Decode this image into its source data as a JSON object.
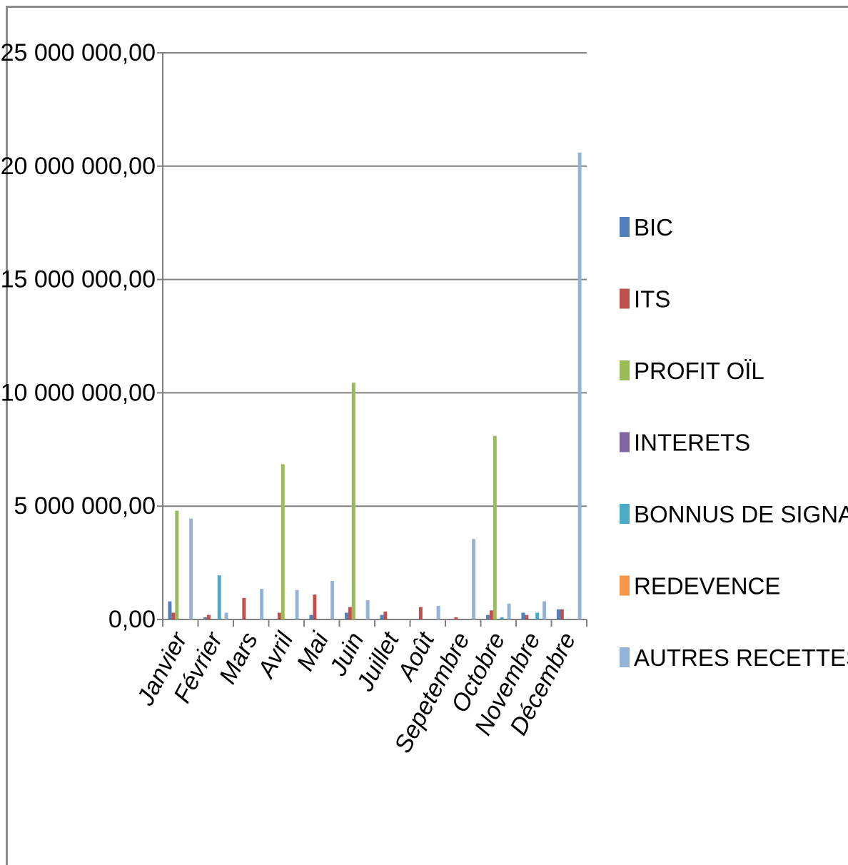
{
  "chart_data": {
    "type": "bar",
    "categories": [
      "Janvier",
      "Février",
      "Mars",
      "Avril",
      "Mai",
      "Juin",
      "Juillet",
      "Août",
      "Sepetembre",
      "Octobre",
      "Novembre",
      "Décembre"
    ],
    "y_tick_labels": [
      "0,00",
      "5 000 000,00",
      "10 000 000,00",
      "15 000 000,00",
      "20 000 000,00",
      "25 000 000,00"
    ],
    "ylim": [
      0,
      25000000
    ],
    "grid": true,
    "legend_position": "right",
    "series": [
      {
        "name": "BIC",
        "color": "#4f81bd",
        "values": [
          800000,
          100000,
          0,
          0,
          200000,
          300000,
          200000,
          0,
          0,
          200000,
          300000,
          450000
        ]
      },
      {
        "name": "ITS",
        "color": "#c0504d",
        "values": [
          300000,
          200000,
          950000,
          300000,
          1100000,
          550000,
          350000,
          550000,
          100000,
          400000,
          200000,
          450000
        ]
      },
      {
        "name": "PROFIT OÏL",
        "color": "#9bbb59",
        "values": [
          4800000,
          0,
          0,
          6850000,
          0,
          10450000,
          0,
          0,
          0,
          8100000,
          0,
          0
        ]
      },
      {
        "name": "INTERETS",
        "color": "#8064a2",
        "values": [
          0,
          0,
          0,
          0,
          0,
          0,
          0,
          0,
          0,
          0,
          0,
          0
        ]
      },
      {
        "name": "BONNUS DE SIGNATURE",
        "color": "#4bacc6",
        "values": [
          0,
          1950000,
          0,
          0,
          0,
          0,
          0,
          0,
          0,
          100000,
          300000,
          0
        ]
      },
      {
        "name": "REDEVENCE",
        "color": "#f79646",
        "values": [
          0,
          0,
          0,
          0,
          0,
          0,
          0,
          0,
          0,
          0,
          0,
          0
        ]
      },
      {
        "name": "AUTRES RECETTES",
        "color": "#95b3d7",
        "values": [
          4450000,
          300000,
          1350000,
          1300000,
          1700000,
          850000,
          0,
          600000,
          3550000,
          700000,
          800000,
          20600000
        ]
      }
    ]
  }
}
